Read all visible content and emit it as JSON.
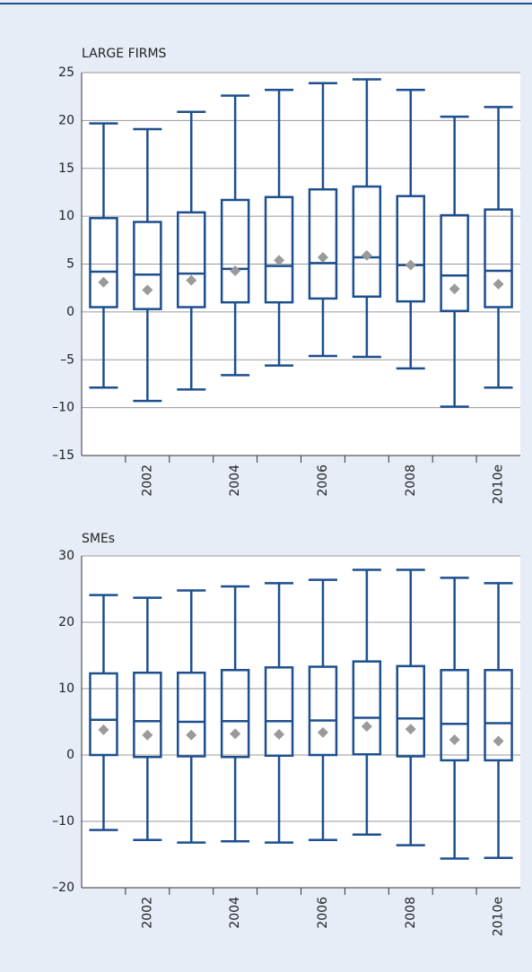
{
  "chart_data": [
    {
      "type": "box",
      "title": "LARGE FIRMS",
      "categories": [
        null,
        "2002",
        null,
        "2004",
        null,
        "2006",
        null,
        "2008",
        null,
        "2010e"
      ],
      "whisker_low": [
        -7.9,
        -9.3,
        -8.1,
        -6.6,
        -5.6,
        -4.6,
        -4.7,
        -5.9,
        -9.9,
        -7.9
      ],
      "q1": [
        0.5,
        0.3,
        0.5,
        1.0,
        1.0,
        1.4,
        1.6,
        1.1,
        0.1,
        0.5
      ],
      "median": [
        4.2,
        3.9,
        4.0,
        4.5,
        4.8,
        5.1,
        5.7,
        4.9,
        3.8,
        4.3
      ],
      "q3": [
        9.8,
        9.4,
        10.4,
        11.7,
        12.0,
        12.8,
        13.1,
        12.1,
        10.1,
        10.7
      ],
      "whisker_high": [
        19.7,
        19.1,
        20.9,
        22.6,
        23.2,
        23.9,
        24.3,
        23.2,
        20.4,
        21.4
      ],
      "mean": [
        3.1,
        2.3,
        3.3,
        4.3,
        5.4,
        5.7,
        5.9,
        4.9,
        2.4,
        2.9
      ],
      "box_color": "#1d4f8f",
      "mean_color": "#9a9a9a",
      "ylim": [
        -15,
        25
      ],
      "yticks": [
        {
          "value": -15,
          "label": "–15"
        },
        {
          "value": -10,
          "label": "–10"
        },
        {
          "value": -5,
          "label": "–5"
        },
        0,
        5,
        10,
        15,
        20,
        25
      ],
      "grid": true
    },
    {
      "type": "box",
      "title": "SMEs",
      "categories": [
        null,
        "2002",
        null,
        "2004",
        null,
        "2006",
        null,
        "2008",
        null,
        "2010e"
      ],
      "whisker_low": [
        -11.3,
        -12.8,
        -13.2,
        -13.0,
        -13.2,
        -12.8,
        -12.0,
        -13.6,
        -15.6,
        -15.5
      ],
      "q1": [
        0,
        -0.3,
        -0.2,
        -0.3,
        -0.1,
        0,
        0.1,
        -0.2,
        -0.8,
        -0.8
      ],
      "median": [
        5.3,
        5.1,
        5.0,
        5.1,
        5.1,
        5.2,
        5.6,
        5.5,
        4.7,
        4.8
      ],
      "q3": [
        12.3,
        12.4,
        12.4,
        12.8,
        13.2,
        13.3,
        14.1,
        13.4,
        12.8,
        12.8
      ],
      "whisker_high": [
        24.1,
        23.7,
        24.8,
        25.4,
        25.9,
        26.4,
        27.9,
        27.9,
        26.7,
        25.9
      ],
      "mean": [
        3.8,
        3.0,
        3.0,
        3.2,
        3.1,
        3.4,
        4.3,
        3.9,
        2.3,
        2.1
      ],
      "box_color": "#1d4f8f",
      "mean_color": "#9a9a9a",
      "ylim": [
        -20,
        30
      ],
      "yticks": [
        {
          "value": -20,
          "label": "–20"
        },
        {
          "value": -10,
          "label": "–10"
        },
        0,
        10,
        20,
        30
      ],
      "grid": true
    }
  ]
}
